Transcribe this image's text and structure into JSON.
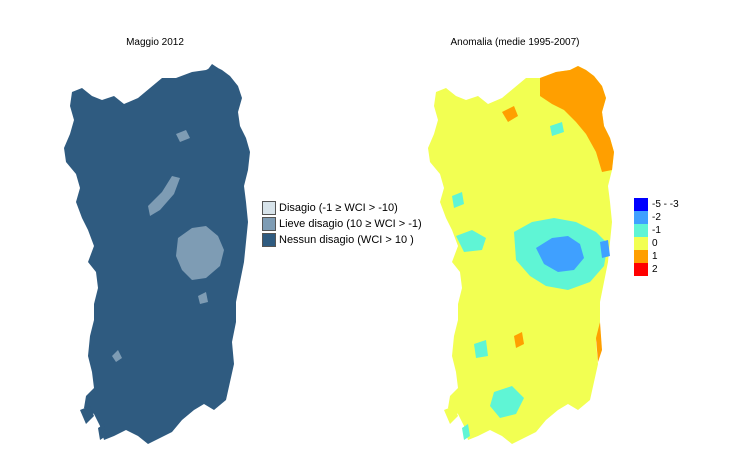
{
  "left_map": {
    "title": "Maggio 2012",
    "legend": [
      {
        "label": "Disagio (-1 ≥ WCI > -10)",
        "color": "#d7e3ea"
      },
      {
        "label": "Lieve disagio (10 ≥ WCI > -1)",
        "color": "#7e9cb4"
      },
      {
        "label": "Nessun disagio (WCI > 10 )",
        "color": "#2f5b80"
      }
    ]
  },
  "right_map": {
    "title": "Anomalia (medie 1995-2007)",
    "legend": [
      {
        "label": "-5 - -3",
        "color": "#0000ff"
      },
      {
        "label": "-2",
        "color": "#3fa0ff"
      },
      {
        "label": "-1",
        "color": "#5ff5d5"
      },
      {
        "label": "0",
        "color": "#f2ff52"
      },
      {
        "label": "1",
        "color": "#ff9f00"
      },
      {
        "label": "2",
        "color": "#ff0000"
      }
    ]
  }
}
